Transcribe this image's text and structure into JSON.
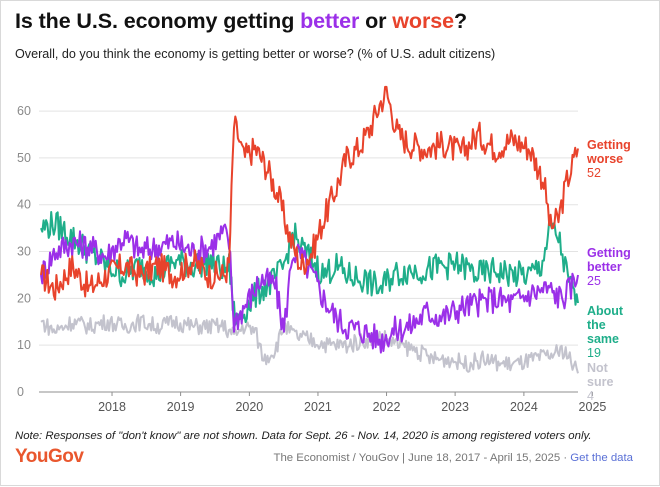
{
  "header": {
    "title_parts": [
      {
        "text": "Is the U.S. economy getting ",
        "color": "#111111"
      },
      {
        "text": "better",
        "color": "#9b30e8"
      },
      {
        "text": " or ",
        "color": "#111111"
      },
      {
        "text": "worse",
        "color": "#e8432c"
      },
      {
        "text": "?",
        "color": "#111111"
      }
    ],
    "subtitle": "Overall, do you think the economy is getting better or worse? (% of U.S. adult citizens)"
  },
  "footer": {
    "note": "Note: Responses of \"don't know\" are not shown. Data for Sept. 26 - Nov. 14, 2020 is among registered voters only.",
    "logo": "YouGov",
    "source": "The Economist / YouGov | June 18, 2017 - April 15, 2025 · ",
    "link": "Get the data"
  },
  "chart_data": {
    "type": "line",
    "title": "Is the U.S. economy getting better or worse?",
    "subtitle": "Overall, do you think the economy is getting better or worse? (% of U.S. adult citizens)",
    "x_ticks": [
      "2018",
      "2019",
      "2020",
      "2021",
      "2022",
      "2023",
      "2024",
      "2025"
    ],
    "y_ticks": [
      0,
      10,
      20,
      30,
      40,
      50,
      60
    ],
    "xlim": [
      "2017-06-18",
      "2025-04-15"
    ],
    "ylim": [
      0,
      66
    ],
    "grid": "horizontal",
    "legend": "direct labels at right end of lines",
    "series": [
      {
        "name": "Getting worse",
        "label_lines": [
          "Getting",
          "worse"
        ],
        "last_value": "52",
        "color": "#e8432c",
        "points": [
          [
            "2017-06-18",
            25
          ],
          [
            "2017-09-01",
            22
          ],
          [
            "2017-12-01",
            27
          ],
          [
            "2018-03-01",
            22
          ],
          [
            "2018-06-01",
            25
          ],
          [
            "2018-09-01",
            27
          ],
          [
            "2018-12-01",
            25
          ],
          [
            "2019-03-01",
            27
          ],
          [
            "2019-06-01",
            25
          ],
          [
            "2019-09-01",
            28
          ],
          [
            "2019-12-01",
            25
          ],
          [
            "2020-02-15",
            25
          ],
          [
            "2020-03-15",
            27
          ],
          [
            "2020-04-10",
            57
          ],
          [
            "2020-05-01",
            55
          ],
          [
            "2020-06-01",
            50
          ],
          [
            "2020-08-01",
            52
          ],
          [
            "2020-10-01",
            48
          ],
          [
            "2020-12-01",
            42
          ],
          [
            "2021-02-01",
            33
          ],
          [
            "2021-04-01",
            27
          ],
          [
            "2021-06-01",
            30
          ],
          [
            "2021-08-01",
            37
          ],
          [
            "2021-10-01",
            43
          ],
          [
            "2021-12-01",
            50
          ],
          [
            "2022-02-01",
            52
          ],
          [
            "2022-04-01",
            56
          ],
          [
            "2022-06-01",
            62
          ],
          [
            "2022-07-01",
            64
          ],
          [
            "2022-09-01",
            55
          ],
          [
            "2022-11-01",
            53
          ],
          [
            "2023-02-01",
            52
          ],
          [
            "2023-05-01",
            53
          ],
          [
            "2023-08-01",
            51
          ],
          [
            "2023-11-01",
            55
          ],
          [
            "2024-02-01",
            52
          ],
          [
            "2024-05-01",
            54
          ],
          [
            "2024-08-01",
            52
          ],
          [
            "2024-10-15",
            45
          ],
          [
            "2024-11-20",
            35
          ],
          [
            "2025-01-01",
            37
          ],
          [
            "2025-02-15",
            45
          ],
          [
            "2025-04-15",
            52
          ]
        ]
      },
      {
        "name": "Getting better",
        "label_lines": [
          "Getting",
          "better"
        ],
        "last_value": "25",
        "color": "#9b30e8",
        "points": [
          [
            "2017-06-18",
            25
          ],
          [
            "2017-09-01",
            30
          ],
          [
            "2017-12-01",
            32
          ],
          [
            "2018-03-01",
            31
          ],
          [
            "2018-06-01",
            29
          ],
          [
            "2018-09-01",
            33
          ],
          [
            "2018-12-01",
            30
          ],
          [
            "2019-03-01",
            31
          ],
          [
            "2019-06-01",
            32
          ],
          [
            "2019-09-01",
            30
          ],
          [
            "2019-12-01",
            31
          ],
          [
            "2020-02-15",
            34
          ],
          [
            "2020-03-15",
            32
          ],
          [
            "2020-04-10",
            15
          ],
          [
            "2020-05-01",
            16
          ],
          [
            "2020-07-01",
            20
          ],
          [
            "2020-09-01",
            24
          ],
          [
            "2020-11-15",
            23
          ],
          [
            "2021-01-01",
            13
          ],
          [
            "2021-02-15",
            30
          ],
          [
            "2021-04-01",
            29
          ],
          [
            "2021-06-01",
            25
          ],
          [
            "2021-08-01",
            20
          ],
          [
            "2021-10-01",
            16
          ],
          [
            "2021-12-01",
            14
          ],
          [
            "2022-03-01",
            13
          ],
          [
            "2022-06-01",
            11
          ],
          [
            "2022-08-01",
            13
          ],
          [
            "2022-11-01",
            14
          ],
          [
            "2023-02-01",
            17
          ],
          [
            "2023-05-01",
            16
          ],
          [
            "2023-08-01",
            18
          ],
          [
            "2023-11-01",
            19
          ],
          [
            "2024-02-01",
            20
          ],
          [
            "2024-05-01",
            19
          ],
          [
            "2024-08-01",
            21
          ],
          [
            "2024-11-01",
            22
          ],
          [
            "2025-01-20",
            20
          ],
          [
            "2025-03-01",
            22
          ],
          [
            "2025-04-15",
            25
          ]
        ]
      },
      {
        "name": "About the same",
        "label_lines": [
          "About",
          "the",
          "same"
        ],
        "last_value": "19",
        "color": "#1fae8a",
        "points": [
          [
            "2017-06-18",
            35
          ],
          [
            "2017-09-01",
            36
          ],
          [
            "2017-12-01",
            33
          ],
          [
            "2018-03-01",
            30
          ],
          [
            "2018-06-01",
            27
          ],
          [
            "2018-09-01",
            25
          ],
          [
            "2018-12-01",
            27
          ],
          [
            "2019-03-01",
            25
          ],
          [
            "2019-06-01",
            28
          ],
          [
            "2019-09-01",
            27
          ],
          [
            "2019-12-01",
            28
          ],
          [
            "2020-02-15",
            26
          ],
          [
            "2020-03-15",
            27
          ],
          [
            "2020-04-10",
            17
          ],
          [
            "2020-05-01",
            15
          ],
          [
            "2020-07-01",
            19
          ],
          [
            "2020-09-01",
            22
          ],
          [
            "2020-11-15",
            24
          ],
          [
            "2021-01-01",
            27
          ],
          [
            "2021-02-15",
            34
          ],
          [
            "2021-04-01",
            31
          ],
          [
            "2021-06-01",
            28
          ],
          [
            "2021-08-01",
            25
          ],
          [
            "2021-10-01",
            27
          ],
          [
            "2021-12-01",
            25
          ],
          [
            "2022-03-01",
            24
          ],
          [
            "2022-06-01",
            22
          ],
          [
            "2022-08-01",
            25
          ],
          [
            "2022-11-01",
            26
          ],
          [
            "2023-02-01",
            26
          ],
          [
            "2023-05-01",
            27
          ],
          [
            "2023-08-01",
            27
          ],
          [
            "2023-11-01",
            25
          ],
          [
            "2024-02-01",
            26
          ],
          [
            "2024-05-01",
            25
          ],
          [
            "2024-08-01",
            25
          ],
          [
            "2024-10-01",
            27
          ],
          [
            "2024-11-20",
            35
          ],
          [
            "2025-01-01",
            33
          ],
          [
            "2025-02-20",
            24
          ],
          [
            "2025-04-15",
            19
          ]
        ]
      },
      {
        "name": "Not sure",
        "label_lines": [
          "Not",
          "sure"
        ],
        "last_value": "4",
        "color": "#c3c3cd",
        "points": [
          [
            "2017-06-18",
            15
          ],
          [
            "2017-09-01",
            13
          ],
          [
            "2017-12-01",
            15
          ],
          [
            "2018-03-01",
            14
          ],
          [
            "2018-06-01",
            15
          ],
          [
            "2018-09-01",
            14
          ],
          [
            "2018-12-01",
            15
          ],
          [
            "2019-03-01",
            14
          ],
          [
            "2019-06-01",
            15
          ],
          [
            "2019-09-01",
            14
          ],
          [
            "2019-12-01",
            14
          ],
          [
            "2020-02-15",
            14
          ],
          [
            "2020-04-10",
            12
          ],
          [
            "2020-06-01",
            14
          ],
          [
            "2020-08-01",
            13
          ],
          [
            "2020-09-15",
            7
          ],
          [
            "2020-11-15",
            9
          ],
          [
            "2021-01-01",
            14
          ],
          [
            "2021-03-01",
            12
          ],
          [
            "2021-06-01",
            11
          ],
          [
            "2021-09-01",
            10
          ],
          [
            "2021-12-01",
            10
          ],
          [
            "2022-03-01",
            11
          ],
          [
            "2022-06-01",
            12
          ],
          [
            "2022-09-01",
            10
          ],
          [
            "2022-12-01",
            9
          ],
          [
            "2023-03-01",
            7
          ],
          [
            "2023-06-01",
            7
          ],
          [
            "2023-09-01",
            6
          ],
          [
            "2023-12-01",
            7
          ],
          [
            "2024-03-01",
            6
          ],
          [
            "2024-06-01",
            6
          ],
          [
            "2024-09-01",
            7
          ],
          [
            "2024-12-01",
            8
          ],
          [
            "2025-02-01",
            9
          ],
          [
            "2025-04-15",
            4
          ]
        ]
      }
    ]
  }
}
